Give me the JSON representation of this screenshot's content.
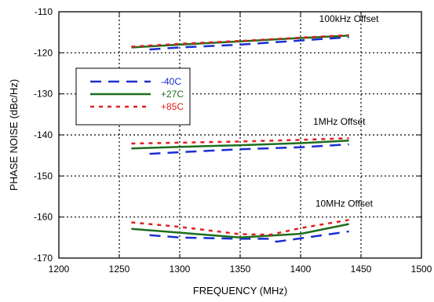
{
  "chart_data": {
    "type": "line",
    "xlabel": "FREQUENCY (MHz)",
    "ylabel": "PHASE NOISE (dBc/Hz)",
    "xlim": [
      1200,
      1500
    ],
    "ylim": [
      -170,
      -110
    ],
    "xticks": [
      1200,
      1250,
      1300,
      1350,
      1400,
      1450,
      1500
    ],
    "yticks": [
      -110,
      -120,
      -130,
      -140,
      -150,
      -160,
      -170
    ],
    "grid": true,
    "grid_style": "dotted",
    "legend": {
      "placement": "upper-left",
      "entries": [
        {
          "label": "-40C",
          "color": "#1a2fd0",
          "dash": "long-dash"
        },
        {
          "label": "+27C",
          "color": "#1e6e1e",
          "dash": "solid"
        },
        {
          "label": "+85C",
          "color": "#e02020",
          "dash": "dotted"
        }
      ]
    },
    "annotations": [
      {
        "text": "100kHz Offset",
        "x": 1440,
        "y": -112.5
      },
      {
        "text": "1MHz Offset",
        "x": 1432,
        "y": -137.5
      },
      {
        "text": "10MHz Offset",
        "x": 1436,
        "y": -157.5
      }
    ],
    "series": [
      {
        "name": "-40C",
        "group": "100kHz Offset",
        "x": [
          1275,
          1300,
          1350,
          1400,
          1440
        ],
        "y": [
          -119.2,
          -118.7,
          -118,
          -117,
          -116.2
        ]
      },
      {
        "name": "+27C",
        "group": "100kHz Offset",
        "x": [
          1260,
          1300,
          1350,
          1400,
          1440
        ],
        "y": [
          -118.7,
          -118,
          -117.2,
          -116.4,
          -115.8
        ]
      },
      {
        "name": "+85C",
        "group": "100kHz Offset",
        "x": [
          1260,
          1300,
          1350,
          1400,
          1440
        ],
        "y": [
          -118.5,
          -117.8,
          -117.1,
          -116.3,
          -115.7
        ]
      },
      {
        "name": "-40C",
        "group": "1MHz Offset",
        "x": [
          1275,
          1300,
          1350,
          1400,
          1440
        ],
        "y": [
          -144.6,
          -144.2,
          -143.5,
          -143,
          -142.3
        ]
      },
      {
        "name": "+27C",
        "group": "1MHz Offset",
        "x": [
          1260,
          1300,
          1350,
          1400,
          1440
        ],
        "y": [
          -143.3,
          -142.9,
          -142.5,
          -142,
          -141.4
        ]
      },
      {
        "name": "+85C",
        "group": "1MHz Offset",
        "x": [
          1260,
          1300,
          1350,
          1400,
          1440
        ],
        "y": [
          -142.1,
          -141.9,
          -141.6,
          -141.2,
          -140.8
        ]
      },
      {
        "name": "-40C",
        "group": "10MHz Offset",
        "x": [
          1275,
          1300,
          1350,
          1375,
          1380,
          1400,
          1440
        ],
        "y": [
          -164.4,
          -165,
          -165.3,
          -165.3,
          -166,
          -165.2,
          -163.5
        ]
      },
      {
        "name": "+27C",
        "group": "10MHz Offset",
        "x": [
          1260,
          1300,
          1350,
          1400,
          1440
        ],
        "y": [
          -162.9,
          -163.8,
          -165,
          -164.1,
          -161.7
        ]
      },
      {
        "name": "+85C",
        "group": "10MHz Offset",
        "x": [
          1260,
          1300,
          1350,
          1375,
          1400,
          1440
        ],
        "y": [
          -161.3,
          -162.4,
          -164.2,
          -164.3,
          -162.7,
          -160.7
        ]
      }
    ]
  }
}
